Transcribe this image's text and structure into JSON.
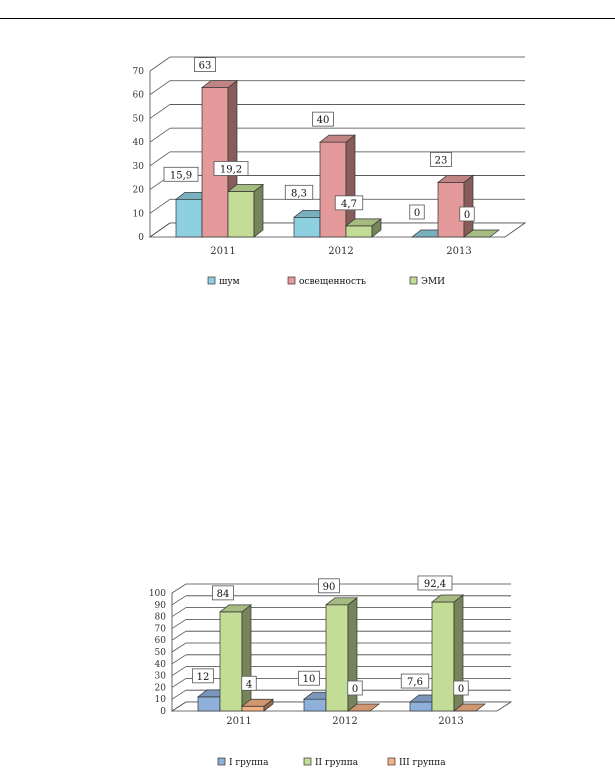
{
  "chart_data": [
    {
      "type": "bar",
      "categories": [
        "2011",
        "2012",
        "2013"
      ],
      "y_ticks": [
        "0",
        "10",
        "20",
        "30",
        "40",
        "50",
        "60",
        "70"
      ],
      "ylim": [
        0,
        70
      ],
      "grid": true,
      "legend_position": "bottom",
      "series": [
        {
          "name": "шум",
          "color": "#8ecfe0",
          "values": [
            15.9,
            8.3,
            0
          ],
          "labels": [
            "15,9",
            "8,3",
            "0"
          ]
        },
        {
          "name": "освещенность",
          "color": "#e49a9a",
          "values": [
            63,
            40,
            23
          ],
          "labels": [
            "63",
            "40",
            "23"
          ]
        },
        {
          "name": "ЭМИ",
          "color": "#c3dc96",
          "values": [
            19.2,
            4.7,
            0
          ],
          "labels": [
            "19,2",
            "4,7",
            "0"
          ]
        }
      ]
    },
    {
      "type": "bar",
      "categories": [
        "2011",
        "2012",
        "2013"
      ],
      "y_ticks": [
        "0",
        "10",
        "20",
        "30",
        "40",
        "50",
        "60",
        "70",
        "80",
        "90",
        "100"
      ],
      "ylim": [
        0,
        100
      ],
      "grid": true,
      "legend_position": "bottom",
      "series": [
        {
          "name": "I группа",
          "color": "#8fb0db",
          "values": [
            12,
            10,
            7.6
          ],
          "labels": [
            "12",
            "10",
            "7,6"
          ]
        },
        {
          "name": "II группа",
          "color": "#c3dc96",
          "values": [
            84,
            90,
            92.4
          ],
          "labels": [
            "84",
            "90",
            "92,4"
          ]
        },
        {
          "name": "III группа",
          "color": "#f4b183",
          "values": [
            4,
            0,
            0
          ],
          "labels": [
            "4",
            "0",
            "0"
          ]
        }
      ]
    }
  ]
}
